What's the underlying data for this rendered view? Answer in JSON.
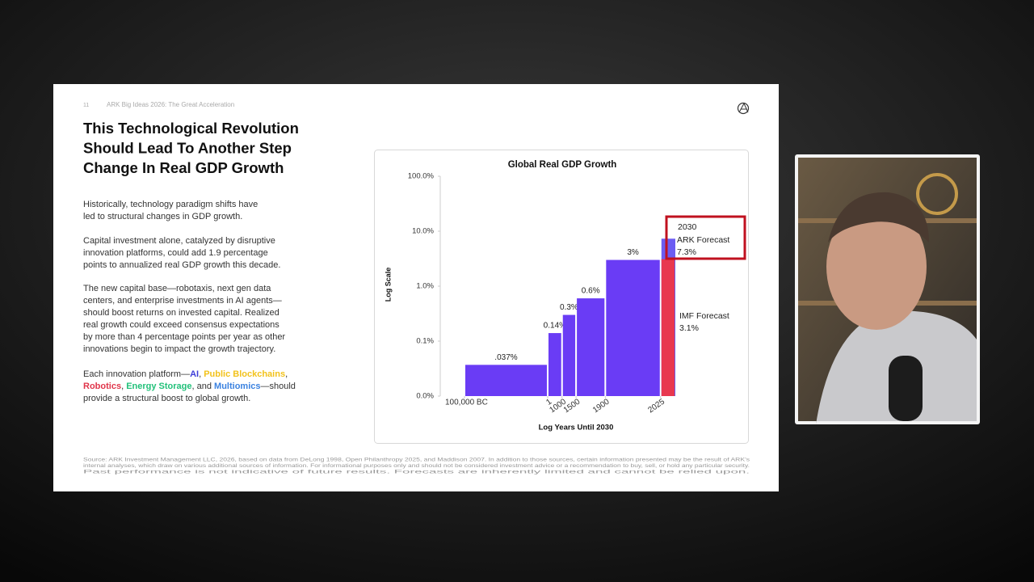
{
  "slide": {
    "page_number": "11",
    "header": "ARK Big Ideas 2026: The Great Acceleration",
    "title_lines": [
      "This Technological Revolution",
      "Should Lead To Another Step",
      "Change In Real GDP Growth"
    ],
    "paragraphs": [
      [
        "Historically, technology paradigm shifts have",
        "led to structural changes in GDP growth."
      ],
      [
        "Capital investment alone, catalyzed by disruptive",
        "innovation platforms, could add 1.9 percentage",
        "points to annualized real GDP growth this decade."
      ],
      [
        "The new capital base—robotaxis, next gen data",
        "centers, and enterprise investments in AI agents—",
        "should boost returns on invested capital. Realized",
        "real growth could exceed consensus expectations",
        "by more than 4 percentage points per year as other",
        "innovations begin to impact the growth trajectory."
      ]
    ],
    "platform_lines": [
      [
        {
          "text": "Each innovation platform—"
        },
        {
          "text": "AI",
          "color": "#3d3dd8"
        },
        {
          "text": ", "
        },
        {
          "text": "Public Blockchains",
          "color": "#f2c21b"
        },
        {
          "text": ","
        }
      ],
      [
        {
          "text": "Robotics",
          "color": "#e0354a"
        },
        {
          "text": ", "
        },
        {
          "text": "Energy Storage",
          "color": "#22c17a"
        },
        {
          "text": ", and "
        },
        {
          "text": "Multiomics",
          "color": "#3b82e0"
        },
        {
          "text": "—should"
        }
      ],
      [
        {
          "text": "provide a structural boost to global growth."
        }
      ]
    ],
    "footer_lines": [
      "Source: ARK Investment Management LLC, 2026, based on data from DeLong 1998, Open Philanthropy 2025, and Maddison 2007. In addition to those sources, certain information presented may be the result of ARK's",
      "internal analyses, which draw on various additional sources of information. For informational purposes only and should not be considered investment advice or a recommendation to buy, sell, or hold any particular security.",
      "Past performance is not indicative of future results. Forecasts are inherently limited and cannot be relied upon."
    ]
  },
  "chart_data": {
    "type": "histogram",
    "title": "Global Real GDP Growth",
    "x_label": "Log Years Until 2030",
    "y_label": "Log Scale",
    "bins": [
      -100000,
      1,
      1000,
      1500,
      1900,
      2025
    ],
    "values": [
      0.037,
      0.14,
      0.3,
      0.6,
      3
    ],
    "value_labels": [
      ".037%",
      "0.14%",
      "0.3%",
      "0.6%",
      "3%"
    ],
    "color": "#6a3cf5",
    "xlim": [
      -100000,
      2030
    ],
    "xticks": [
      {
        "value": -100000,
        "label": "100,000 BC"
      },
      1,
      1000,
      1500,
      1900,
      2025
    ],
    "ylim": [
      0.01,
      100
    ],
    "yticks": [
      {
        "value": 0.01,
        "label": "0.0%"
      },
      {
        "value": 0.1,
        "label": "0.1%"
      },
      {
        "value": 1,
        "label": "1.0%"
      },
      {
        "value": 10,
        "label": "10.0%"
      },
      {
        "value": 100,
        "label": "100.0%"
      }
    ],
    "y_log": true,
    "forecasts": [
      {
        "name": "ARK Forecast",
        "value": 7.3,
        "value_label": "7.3%",
        "color": "#6b5cf2"
      },
      {
        "name": "IMF Forecast",
        "value": 3.1,
        "value_label": "3.1%",
        "color": "#e8384f"
      }
    ]
  }
}
